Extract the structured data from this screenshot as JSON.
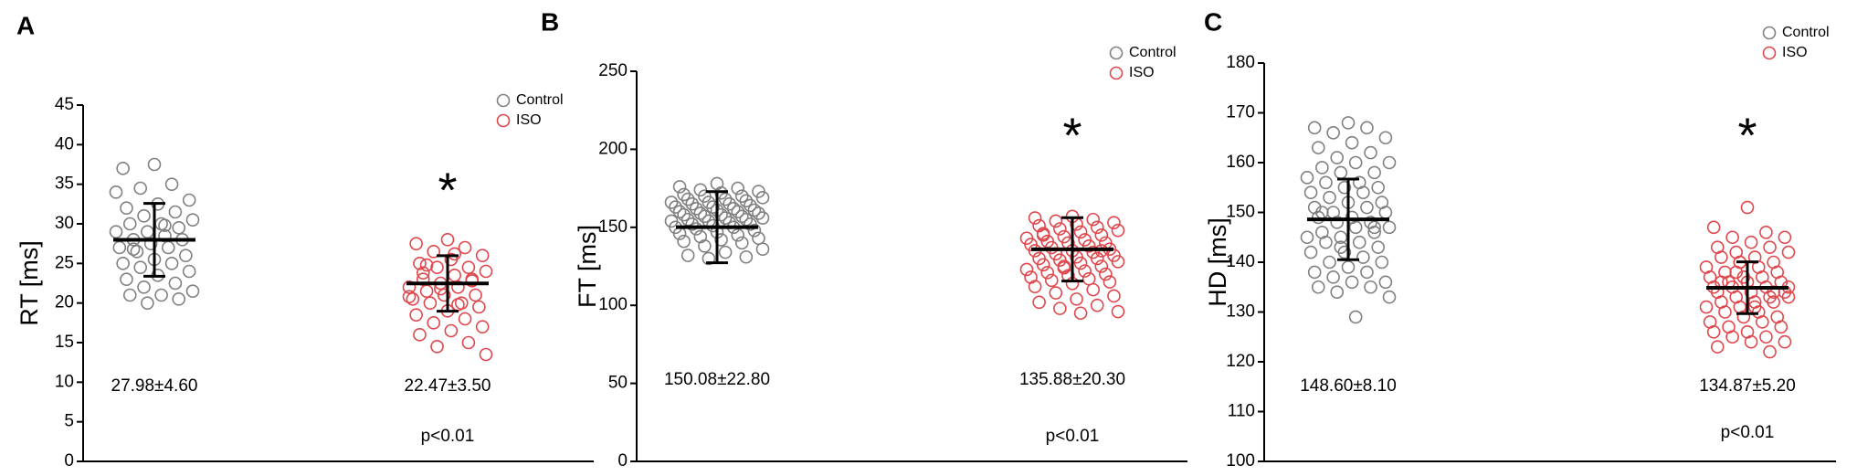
{
  "chart_data": [
    {
      "type": "dot",
      "panel": "A",
      "ylabel": "RT [ms]",
      "ylim": [
        0,
        45
      ],
      "yticks": [
        0,
        5,
        10,
        15,
        20,
        25,
        30,
        35,
        40,
        45
      ],
      "legend": "upper right",
      "series": [
        {
          "name": "Control",
          "color": "#808080",
          "mean": 27.98,
          "sd": 4.6,
          "summary": "27.98±4.60",
          "values": [
            37.5,
            37,
            35,
            34.5,
            33,
            32.5,
            32,
            31.5,
            31,
            30.5,
            30,
            30,
            29.5,
            29,
            29,
            28.5,
            28,
            28,
            27.5,
            27,
            27,
            26.5,
            26,
            25.5,
            25,
            25,
            24.5,
            24,
            23.5,
            23,
            22.5,
            22,
            21.5,
            21,
            21,
            20.5,
            20,
            34,
            29.8,
            26.8
          ]
        },
        {
          "name": "ISO",
          "color": "#e0474c",
          "mean": 22.47,
          "sd": 3.5,
          "summary": "22.47±3.50",
          "values": [
            28,
            27.5,
            27,
            26.5,
            26,
            25.5,
            25,
            24.5,
            24.5,
            24,
            23.5,
            23,
            23,
            22.5,
            22,
            22,
            21.5,
            21,
            21,
            20.5,
            20,
            20,
            19.5,
            19,
            18.5,
            18,
            17.5,
            17,
            16.5,
            16,
            15,
            14.5,
            13.5,
            26.2,
            23.8,
            22.8,
            21.8,
            20.8,
            19.8,
            24.8
          ]
        }
      ],
      "annotation": "*",
      "p_text": "p<0.01"
    },
    {
      "type": "dot",
      "panel": "B",
      "ylabel": "FT [ms]",
      "ylim": [
        0,
        250
      ],
      "yticks": [
        0,
        50,
        100,
        150,
        200,
        250
      ],
      "legend": "upper right",
      "series": [
        {
          "name": "Control",
          "color": "#808080",
          "mean": 150.08,
          "sd": 22.8,
          "summary": "150.08±22.80",
          "values": [
            178,
            176,
            175,
            174,
            173,
            172,
            171,
            170,
            170,
            169,
            168,
            168,
            167,
            166,
            166,
            165,
            165,
            164,
            163,
            163,
            162,
            162,
            161,
            161,
            160,
            160,
            159,
            159,
            158,
            158,
            157,
            157,
            156,
            156,
            155,
            155,
            154,
            154,
            153,
            152,
            152,
            151,
            150,
            150,
            149,
            148,
            147,
            146,
            145,
            144,
            143,
            142,
            141,
            140,
            138,
            136,
            134,
            132,
            131,
            130
          ]
        },
        {
          "name": "ISO",
          "color": "#e0474c",
          "mean": 135.88,
          "sd": 20.3,
          "summary": "135.88±20.30",
          "values": [
            157,
            156,
            155,
            154,
            153,
            152,
            151,
            150,
            149,
            148,
            147,
            146,
            145,
            144,
            143,
            142,
            141,
            140,
            140,
            139,
            138,
            137,
            136,
            135,
            135,
            134,
            133,
            132,
            131,
            130,
            130,
            129,
            128,
            127,
            126,
            125,
            124,
            123,
            122,
            121,
            120,
            119,
            118,
            117,
            116,
            115,
            114,
            112,
            110,
            108,
            106,
            104,
            102,
            100,
            98,
            96,
            95,
            145,
            135,
            125
          ]
        }
      ],
      "annotation": "*",
      "p_text": "p<0.01"
    },
    {
      "type": "dot",
      "panel": "C",
      "ylabel": "HD [ms]",
      "ylim": [
        100,
        180
      ],
      "yticks": [
        100,
        110,
        120,
        130,
        140,
        150,
        160,
        170,
        180
      ],
      "legend": "upper right",
      "series": [
        {
          "name": "Control",
          "color": "#808080",
          "mean": 148.6,
          "sd": 8.1,
          "summary": "148.60±8.10",
          "values": [
            168,
            167,
            167,
            166,
            165,
            164,
            163,
            162,
            161,
            160,
            160,
            159,
            158,
            158,
            157,
            156,
            156,
            155,
            155,
            154,
            154,
            153,
            152,
            152,
            151,
            151,
            150,
            150,
            149,
            149,
            148,
            148,
            147,
            147,
            146,
            146,
            145,
            145,
            144,
            144,
            143,
            142,
            142,
            141,
            140,
            140,
            139,
            138,
            138,
            137,
            136,
            136,
            135,
            135,
            134,
            133,
            129,
            150,
            147,
            143
          ]
        },
        {
          "name": "ISO",
          "color": "#e0474c",
          "mean": 134.87,
          "sd": 5.2,
          "summary": "134.87±5.20",
          "values": [
            151,
            147,
            146,
            145,
            145,
            144,
            143,
            143,
            142,
            142,
            141,
            141,
            140,
            140,
            139,
            139,
            138,
            138,
            137,
            137,
            137,
            136,
            136,
            136,
            135,
            135,
            135,
            134,
            134,
            134,
            133,
            133,
            133,
            132,
            132,
            132,
            131,
            131,
            130,
            130,
            129,
            129,
            128,
            128,
            127,
            127,
            126,
            126,
            125,
            125,
            124,
            124,
            123,
            122,
            138,
            135,
            131,
            136,
            134,
            140
          ]
        }
      ],
      "annotation": "*",
      "p_text": "p<0.01"
    }
  ]
}
